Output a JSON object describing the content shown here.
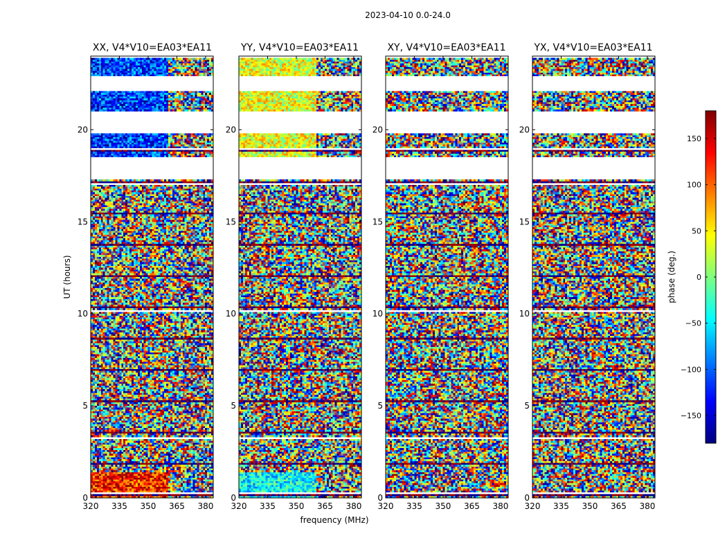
{
  "chart_data": {
    "type": "heatmap",
    "title": "2023-04-10 0.0-24.0",
    "xlabel": "frequency (MHz)",
    "ylabel": "UT (hours)",
    "xlim": [
      320,
      384
    ],
    "ylim": [
      0,
      24
    ],
    "x_ticks": [
      "320",
      "335",
      "350",
      "365",
      "380"
    ],
    "x_tick_values": [
      320,
      335,
      350,
      365,
      380
    ],
    "y_ticks": [
      "0",
      "5",
      "10",
      "15",
      "20"
    ],
    "y_tick_values": [
      0,
      5,
      10,
      15,
      20
    ],
    "colorbar": {
      "label": "phase (deg.)",
      "range": [
        -180,
        180
      ],
      "ticks": [
        "−150",
        "−100",
        "−50",
        "0",
        "50",
        "100",
        "150"
      ],
      "tick_values": [
        -150,
        -100,
        -50,
        0,
        50,
        100,
        150
      ],
      "colormap": "jet",
      "colors": [
        "#00007f",
        "#0000ff",
        "#007fff",
        "#00ffff",
        "#7fff7f",
        "#ffff00",
        "#ff7f00",
        "#ff0000",
        "#7f0000"
      ]
    },
    "blank_intervals_hours": [
      [
        22.1,
        22.9
      ],
      [
        19.8,
        21.0
      ],
      [
        17.3,
        18.5
      ],
      [
        18.9,
        19.0
      ],
      [
        0.2,
        0.25
      ]
    ],
    "panels": [
      {
        "title": "XX, V4*V10=EA03*EA11",
        "correlation": "XX"
      },
      {
        "title": "YY, V4*V10=EA03*EA11",
        "correlation": "YY"
      },
      {
        "title": "XY, V4*V10=EA03*EA11",
        "correlation": "XY"
      },
      {
        "title": "YX, V4*V10=EA03*EA11",
        "correlation": "YX"
      }
    ]
  }
}
